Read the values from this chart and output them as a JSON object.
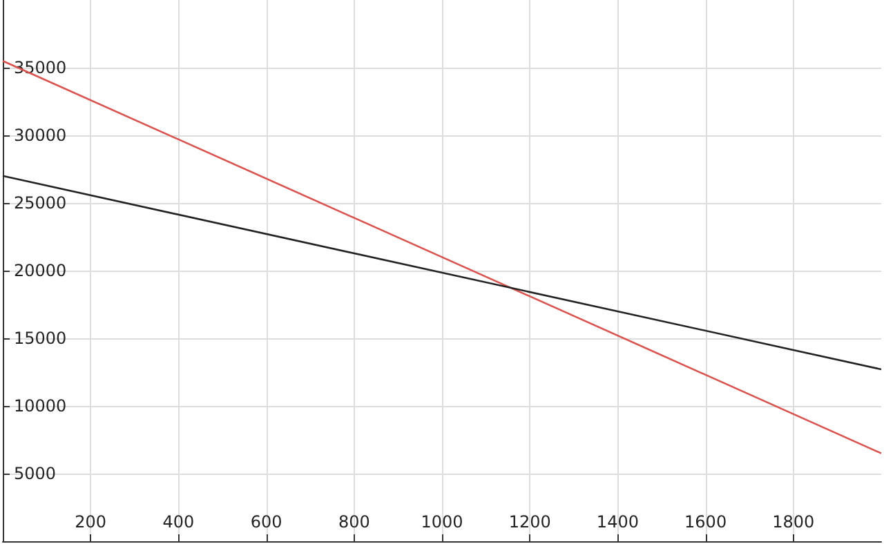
{
  "chart_data": {
    "type": "line",
    "x": [
      0,
      2000
    ],
    "series": [
      {
        "color": "#d9534f",
        "values": [
          35500,
          6500
        ]
      },
      {
        "color": "#222222",
        "values": [
          27000,
          12700
        ]
      }
    ],
    "xlim": [
      0,
      2000
    ],
    "xticks": [
      200,
      400,
      600,
      800,
      1000,
      1200,
      1400,
      1600,
      1800
    ],
    "ylim": [
      0,
      40000
    ],
    "yticks": [
      5000,
      10000,
      15000,
      20000,
      25000,
      30000,
      35000
    ],
    "grid": true,
    "marker": "none",
    "line_style": "solid"
  }
}
